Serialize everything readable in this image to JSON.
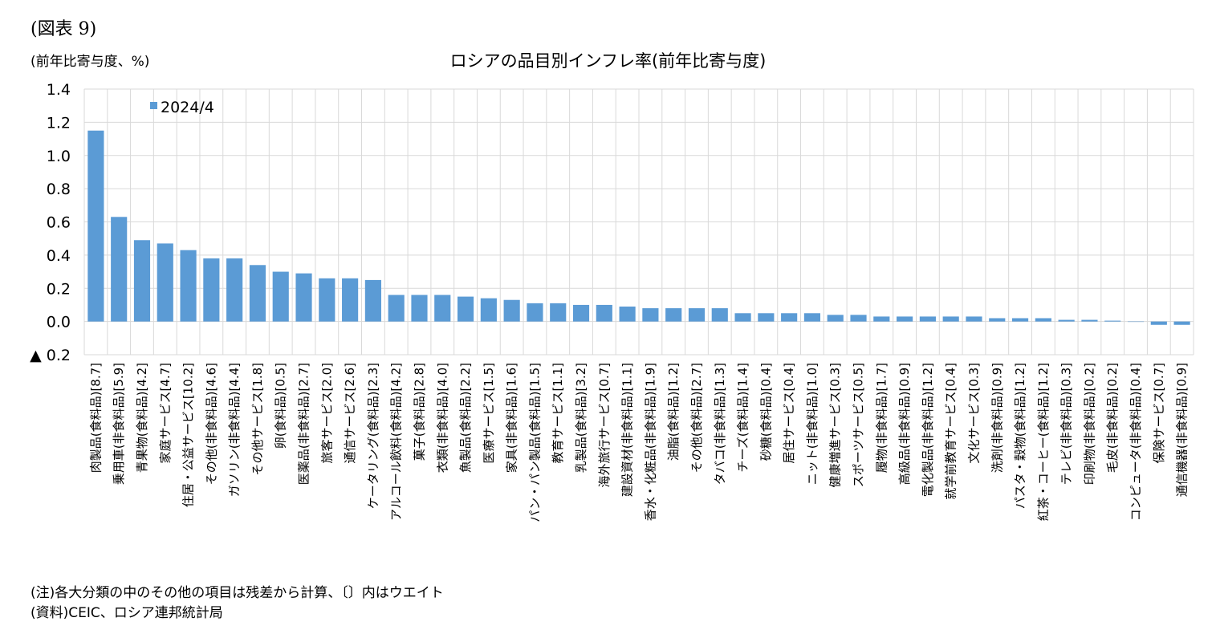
{
  "figure_label": "(図表 9)",
  "unit_label": "(前年比寄与度、%)",
  "notes": {
    "note": "(注)各大分類の中のその他の項目は残差から計算、〔〕内はウエイト",
    "source": "(資料)CEIC、ロシア連邦統計局"
  },
  "colors": {
    "bar": "#5b9bd5",
    "grid": "#d9d9d9"
  },
  "chart_data": {
    "type": "bar",
    "title": "ロシアの品目別インフレ率(前年比寄与度)",
    "xlabel": "",
    "ylabel": "",
    "ylim": [
      -0.2,
      1.4
    ],
    "yticks": [
      1.4,
      1.2,
      1.0,
      0.8,
      0.6,
      0.4,
      0.2,
      0.0,
      -0.2
    ],
    "ytick_labels": [
      "1.4",
      "1.2",
      "1.0",
      "0.8",
      "0.6",
      "0.4",
      "0.2",
      "0.0",
      "▲ 0.2"
    ],
    "grid": true,
    "legend_position": "top-left",
    "series": [
      {
        "name": "2024/4",
        "values": [
          1.15,
          0.63,
          0.49,
          0.47,
          0.43,
          0.38,
          0.38,
          0.34,
          0.3,
          0.29,
          0.26,
          0.26,
          0.25,
          0.16,
          0.16,
          0.16,
          0.15,
          0.14,
          0.13,
          0.11,
          0.11,
          0.1,
          0.1,
          0.09,
          0.08,
          0.08,
          0.08,
          0.08,
          0.05,
          0.05,
          0.05,
          0.05,
          0.04,
          0.04,
          0.03,
          0.03,
          0.03,
          0.03,
          0.03,
          0.02,
          0.02,
          0.02,
          0.01,
          0.01,
          0.005,
          0.0,
          -0.02,
          -0.02
        ]
      }
    ],
    "categories": [
      "肉製品(食料品)[8.7]",
      "乗用車(非食料品)[5.9]",
      "青果物(食料品)[4.2]",
      "家庭サービス[4.7]",
      "住居・公益サービス[10.2]",
      "その他(非食料品)[4.6]",
      "ガソリン(非食料品)[4.4]",
      "その他サービス[1.8]",
      "卵(食料品)[0.5]",
      "医薬品(非食料品)[2.7]",
      "旅客サービス[2.0]",
      "通信サービス[2.6]",
      "ケータリング(食料品)[2.3]",
      "アルコール飲料(食料品)[4.2]",
      "菓子(食料品)[2.8]",
      "衣類(非食料品)[4.0]",
      "魚製品(食料品)[2.2]",
      "医療サービス[1.5]",
      "家具(非食料品)[1.6]",
      "パン・パン製品(食料品)[1.5]",
      "教育サービス[1.1]",
      "乳製品(食料品)[3.2]",
      "海外旅行サービス[0.7]",
      "建設資材(非食料品)[1.1]",
      "香水・化粧品(非食料品)[1.9]",
      "油脂(食料品)[1.2]",
      "その他(食料品)[2.7]",
      "タバコ(非食料品)[1.3]",
      "チーズ(食料品)[1.4]",
      "砂糖(食料品)[0.4]",
      "居住サービス[0.4]",
      "ニット(非食料品)[1.0]",
      "健康増進サービス[0.3]",
      "スポーツサービス[0.5]",
      "履物(非食料品)[1.7]",
      "高級品(非食料品)[0.9]",
      "電化製品(非食料品)[1.2]",
      "就学前教育サービス[0.4]",
      "文化サービス[0.3]",
      "洗剤(非食料品)[0.9]",
      "パスタ・穀物(食料品)[1.2]",
      "紅茶・コーヒー(食料品)[1.2]",
      "テレビ(非食料品)[0.3]",
      "印刷物(非食料品)[0.2]",
      "毛皮(非食料品)[0.2]",
      "コンピュータ(非食料品)[0.4]",
      "保険サービス[0.7]",
      "通信機器(非食料品)[0.9]"
    ]
  }
}
